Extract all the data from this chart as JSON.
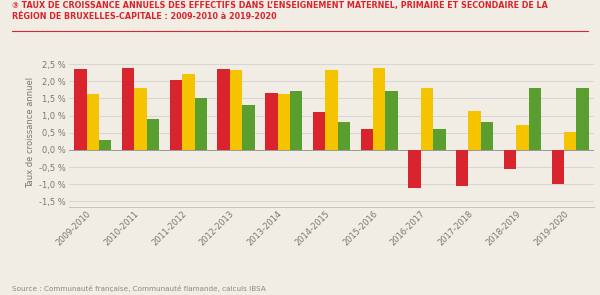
{
  "title_line1": "③ TAUX DE CROISSANCE ANNUELS DES EFFECTIFS DANS L’ENSEIGNEMENT MATERNEL, PRIMAIRE ET SECONDAIRE DE LA",
  "title_line2": "RÉGION DE BRUXELLES-CAPITALE : 2009-2010 à 2019-2020",
  "ylabel": "Taux de croissance annuel",
  "source": "Source : Communauté française, Communauté flamande, calculs IBSA",
  "categories": [
    "2009-2010",
    "2010-2011",
    "2011-2012",
    "2012-2013",
    "2013-2014",
    "2014-2015",
    "2015-2016",
    "2016-2017",
    "2017-2018",
    "2018-2019",
    "2019-2020"
  ],
  "maternel": [
    2.35,
    2.4,
    2.05,
    2.35,
    1.65,
    1.1,
    0.6,
    -1.1,
    -1.05,
    -0.55,
    -1.0
  ],
  "primaire": [
    1.62,
    1.8,
    2.22,
    2.33,
    1.62,
    2.33,
    2.4,
    1.8,
    1.12,
    0.72,
    0.52
  ],
  "secondaire": [
    0.28,
    0.9,
    1.52,
    1.3,
    1.72,
    0.8,
    1.72,
    0.62,
    0.82,
    1.8,
    1.8
  ],
  "color_maternel": "#d9232d",
  "color_primaire": "#f5c400",
  "color_secondaire": "#5a9e2f",
  "color_title": "#d9232d",
  "ylim": [
    -1.65,
    2.65
  ],
  "yticks": [
    -1.5,
    -1.0,
    -0.5,
    0.0,
    0.5,
    1.0,
    1.5,
    2.0,
    2.5
  ],
  "ytick_labels": [
    "-1,5 %",
    "-1,0 %",
    "-0,5 %",
    "0,0 %",
    "0,5 %",
    "1,0 %",
    "1,5 %",
    "2,0 %",
    "2,5 %"
  ],
  "background": "#f2ede4",
  "bar_width": 0.26
}
